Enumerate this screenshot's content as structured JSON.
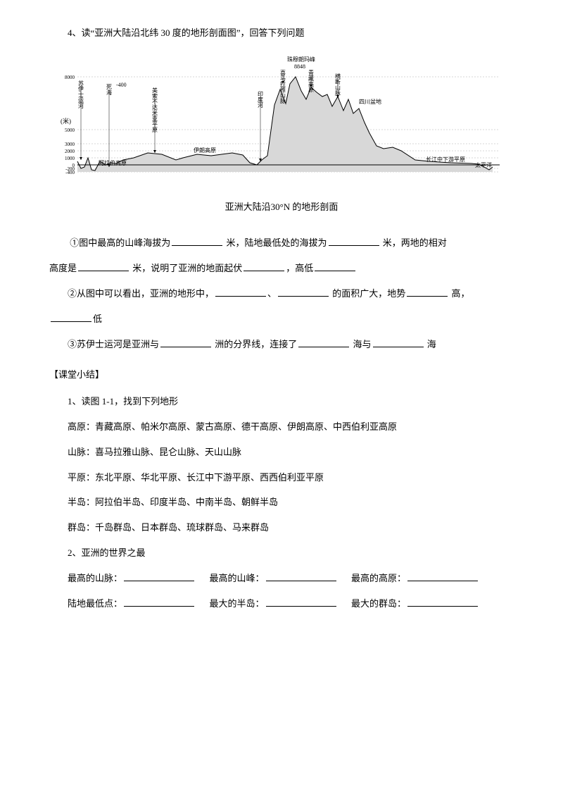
{
  "q4_title": "4、读“亚洲大陆沿北纬 30 度的地形剖面图”，回答下列问题",
  "chart": {
    "y_unit": "(米)",
    "y_ticks": [
      "8000",
      "5000",
      "3000",
      "2000",
      "1000",
      "0",
      "-200",
      "-400"
    ],
    "labels": {
      "suez": "苏伊士运河",
      "dead_sea": "死海",
      "dead_sea_val": "-400",
      "mesopotamia": "美索不达米亚平原",
      "arabia": "阿拉伯高原",
      "iran": "伊朗高原",
      "indus": "印度河",
      "himalaya": "喜马拉雅山脉",
      "tibet": "青藏高原",
      "everest": "珠穆朗玛峰",
      "everest_val": "8848",
      "hengduan": "横断山脉",
      "sichuan": "四川盆地",
      "changjiang": "长江中下游平原",
      "pacific": "太平洋"
    },
    "caption": "亚洲大陆沿30°N 的地形剖面",
    "colors": {
      "line": "#000000",
      "fill": "#d8d8d8",
      "grid": "#999999"
    },
    "profile_points": [
      [
        30,
        150
      ],
      [
        35,
        160
      ],
      [
        40,
        158
      ],
      [
        45,
        145
      ],
      [
        50,
        162
      ],
      [
        55,
        163
      ],
      [
        62,
        150
      ],
      [
        70,
        155
      ],
      [
        78,
        152
      ],
      [
        85,
        153
      ],
      [
        95,
        148
      ],
      [
        110,
        145
      ],
      [
        130,
        138
      ],
      [
        150,
        140
      ],
      [
        170,
        148
      ],
      [
        180,
        145
      ],
      [
        200,
        140
      ],
      [
        220,
        142
      ],
      [
        235,
        140
      ],
      [
        250,
        138
      ],
      [
        265,
        141
      ],
      [
        275,
        152
      ],
      [
        285,
        155
      ],
      [
        292,
        148
      ],
      [
        300,
        142
      ],
      [
        310,
        70
      ],
      [
        318,
        48
      ],
      [
        326,
        68
      ],
      [
        332,
        40
      ],
      [
        340,
        30
      ],
      [
        348,
        50
      ],
      [
        355,
        62
      ],
      [
        362,
        45
      ],
      [
        370,
        52
      ],
      [
        378,
        58
      ],
      [
        385,
        55
      ],
      [
        392,
        72
      ],
      [
        400,
        58
      ],
      [
        408,
        78
      ],
      [
        415,
        62
      ],
      [
        422,
        82
      ],
      [
        430,
        75
      ],
      [
        438,
        95
      ],
      [
        445,
        110
      ],
      [
        455,
        128
      ],
      [
        465,
        132
      ],
      [
        478,
        130
      ],
      [
        490,
        135
      ],
      [
        510,
        148
      ],
      [
        530,
        150
      ],
      [
        560,
        152
      ],
      [
        590,
        153
      ],
      [
        600,
        154
      ],
      [
        608,
        158
      ],
      [
        615,
        162
      ],
      [
        620,
        158
      ]
    ]
  },
  "q1": {
    "p1_a": "①图中最高的山峰海拔为",
    "p1_b": " 米，陆地最低处的海拔为",
    "p1_c": " 米，两地的相对",
    "p2_a": "高度是",
    "p2_b": " 米，说明了亚洲的地面起伏",
    "p2_c": "，高低"
  },
  "q2": {
    "a": "②从图中可以看出，亚洲的地形中，",
    "b": "、",
    "c": " 的面积广大，地势",
    "d": " 高，",
    "e": "低"
  },
  "q3": {
    "a": "③苏伊士运河是亚洲与",
    "b": " 洲的分界线，连接了",
    "c": " 海与",
    "d": " 海"
  },
  "summary_title": "【课堂小结】",
  "s1": "1、读图 1-1，找到下列地形",
  "s1a": "高原：青藏高原、帕米尔高原、蒙古高原、德干高原、伊朗高原、中西伯利亚高原",
  "s1b": "山脉：喜马拉雅山脉、昆仑山脉、天山山脉",
  "s1c": "平原：东北平原、华北平原、长江中下游平原、西西伯利亚平原",
  "s1d": "半岛：阿拉伯半岛、印度半岛、中南半岛、朝鲜半岛",
  "s1e": "群岛：千岛群岛、日本群岛、琉球群岛、马来群岛",
  "s2": "2、亚洲的世界之最",
  "s2a": {
    "a": "最高的山脉：",
    "b": "最高的山峰：",
    "c": "最高的高原："
  },
  "s2b": {
    "a": "陆地最低点：",
    "b": "最大的半岛：",
    "c": "最大的群岛："
  }
}
